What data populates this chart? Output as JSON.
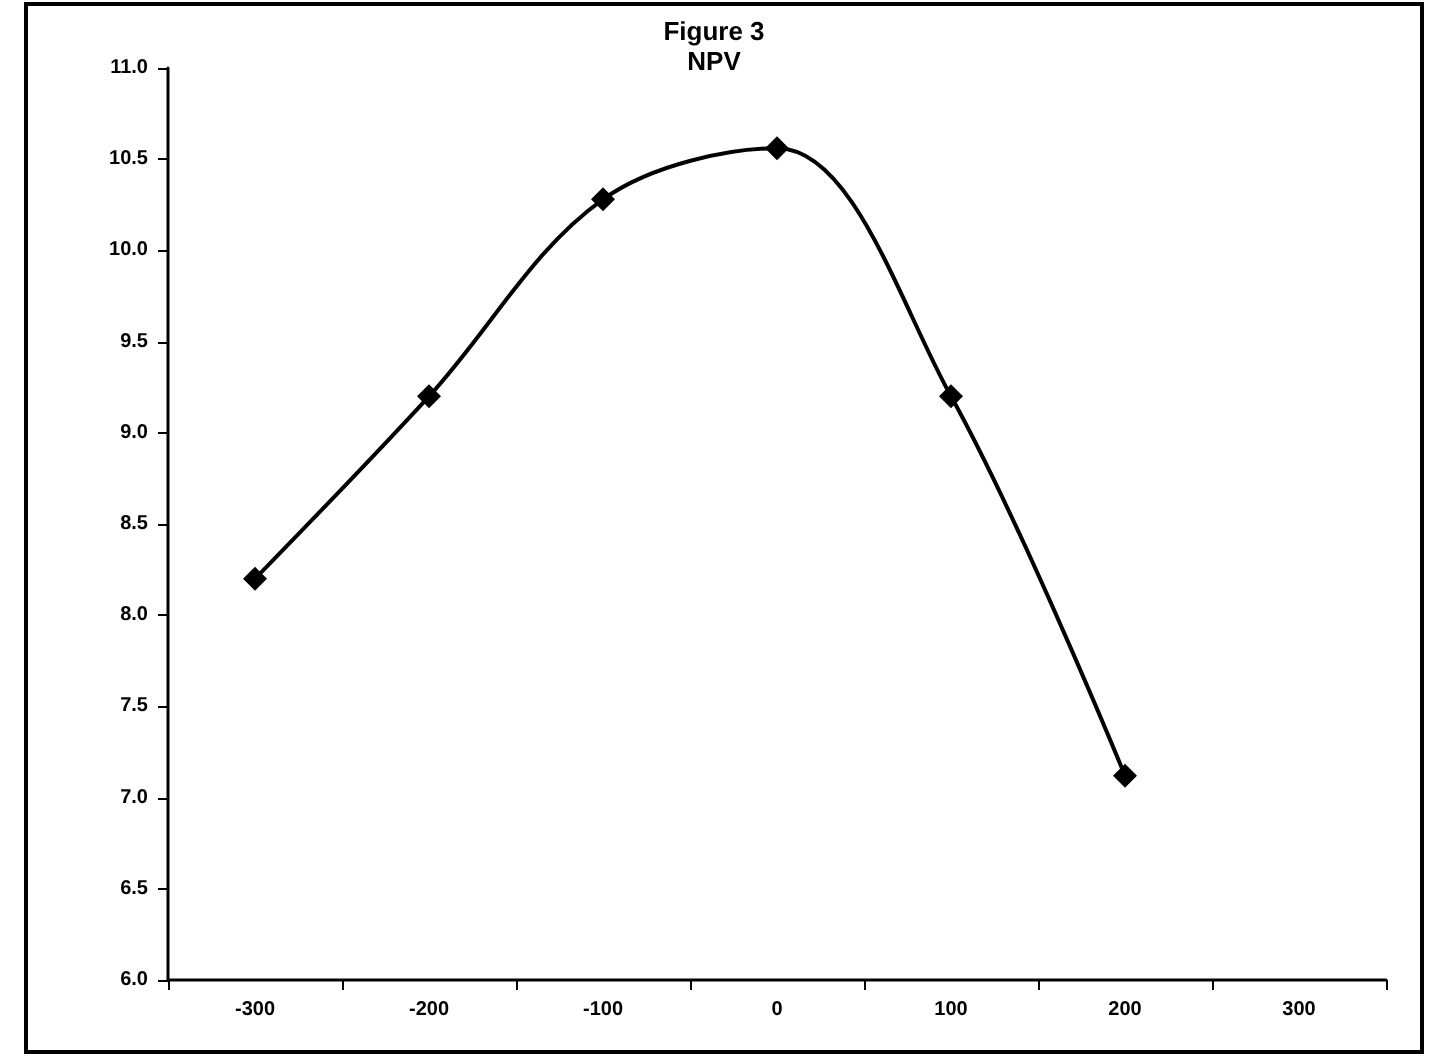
{
  "chart_data": {
    "type": "line",
    "title": "Figure 3",
    "subtitle": "NPV",
    "x": [
      -300,
      -200,
      -100,
      0,
      100,
      200
    ],
    "series": [
      {
        "color": "#000000",
        "values": [
          8.2,
          9.2,
          10.28,
          10.56,
          9.2,
          7.12
        ]
      }
    ],
    "xlim": [
      -350,
      350
    ],
    "xticks": [
      {
        "value": -350,
        "label": null
      },
      -300,
      {
        "value": -250,
        "label": null
      },
      -200,
      {
        "value": -150,
        "label": null
      },
      -100,
      {
        "value": -50,
        "label": null
      },
      0,
      {
        "value": 50,
        "label": null
      },
      100,
      {
        "value": 150,
        "label": null
      },
      200,
      {
        "value": 250,
        "label": null
      },
      300,
      {
        "value": 350,
        "label": null
      }
    ],
    "ylim": [
      6.0,
      11.0
    ],
    "yticks": [
      {
        "value": 6,
        "label": "6.0"
      },
      6.5,
      {
        "value": 7,
        "label": "7.0"
      },
      7.5,
      {
        "value": 8,
        "label": "8.0"
      },
      8.5,
      {
        "value": 9,
        "label": "9.0"
      },
      9.5,
      {
        "value": 10,
        "label": "10.0"
      },
      10.5,
      {
        "value": 11,
        "label": "11.0"
      }
    ],
    "marker": "diamond",
    "line_style": "solid"
  }
}
